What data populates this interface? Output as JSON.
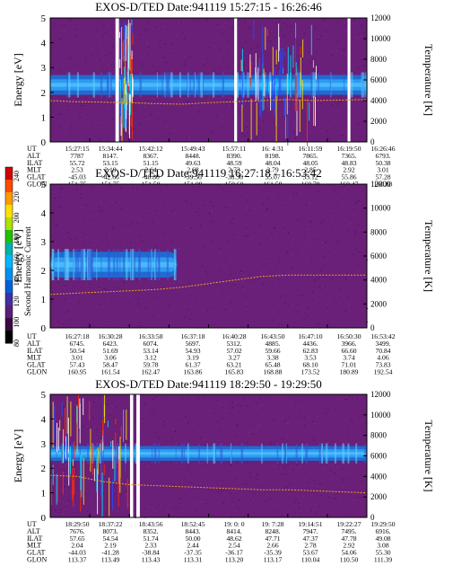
{
  "colors": {
    "background": "#6a1f78",
    "band": "#1e6fd6",
    "band_core": "#4ab8ff",
    "band_edge": "#2e9bf0",
    "temperature_trace": "#f0a020",
    "gap": "#ffffff"
  },
  "colorbar": {
    "label": "Second Harmonic Current",
    "ticks": [
      "240",
      "220",
      "200",
      "180",
      "160",
      "140",
      "120",
      "100",
      "80"
    ],
    "colors": [
      "#d10000",
      "#ff4a00",
      "#ff9a00",
      "#ffe000",
      "#b0e000",
      "#20c000",
      "#00b0b0",
      "#00b6ff",
      "#0090f0",
      "#0060d8",
      "#4030a0",
      "#5a1f7a",
      "#3a0a40",
      "#000000"
    ]
  },
  "chart_data": [
    {
      "type": "heatmap",
      "title": "EXOS-D/TED   Date:941119   15:27:15 - 16:26:46",
      "ylabel": "Energy [eV]",
      "y2label": "Temperature [K]",
      "ylim": [
        0,
        5
      ],
      "y2lim": [
        0,
        12000
      ],
      "yticks": [
        "0",
        "1",
        "2",
        "3",
        "4",
        "5"
      ],
      "y2ticks": [
        "0",
        "2000",
        "4000",
        "6000",
        "8000",
        "10000",
        "12000"
      ],
      "band": {
        "center_eV": 2.3,
        "width_eV": 0.8
      },
      "temperature_K": [
        4000,
        3900,
        3850,
        3800,
        3700,
        3650,
        3800,
        3900,
        4000,
        4100,
        4000,
        4050,
        4100
      ],
      "gaps": [
        [
          0.206,
          0.217
        ],
        [
          0.581,
          0.59
        ],
        [
          0.939,
          0.948
        ]
      ],
      "noise_segments": [
        [
          0.217,
          0.26
        ],
        [
          0.6,
          0.84
        ]
      ],
      "ephemeris": {
        "rows": [
          "UT",
          "ALT",
          "ILAT",
          "MLT",
          "GLAT",
          "GLON"
        ],
        "columns": [
          [
            "15:27:15",
            "7787",
            "55.72",
            "2.53",
            "-45.03",
            "151.75"
          ],
          [
            "15:34:44",
            "8147.",
            "53.15",
            "2.19",
            "-42.66",
            "151.75"
          ],
          [
            "15:42:12",
            "8367.",
            "51.15",
            "2.64",
            "-40.80",
            "151.50"
          ],
          [
            "15:49:43",
            "8448.",
            "49.63",
            "2.68",
            "-39.36",
            "151.09"
          ],
          [
            "15:57:11",
            "8390.",
            "48.59",
            "2.73",
            "-38.36",
            "150.60"
          ],
          [
            "16: 4:31",
            "8198.",
            "48.04",
            "2.79",
            "55.07",
            "161.58"
          ],
          [
            "16:11:59",
            "7865.",
            "48.05",
            "2.85",
            "55.12",
            "160.78"
          ],
          [
            "16:19:50",
            "7365.",
            "48.83",
            "2.92",
            "55.86",
            "160.47"
          ],
          [
            "16:26:46",
            "6793.",
            "50.38",
            "3.01",
            "57.28",
            "160.88"
          ]
        ]
      }
    },
    {
      "type": "heatmap",
      "title": "EXOS-D/TED   Date:941119   16:27:18 - 16:53:42",
      "ylabel": "Energy [eV]",
      "y2label": "Temperature [K]",
      "ylim": [
        0,
        5
      ],
      "y2lim": [
        0,
        12000
      ],
      "yticks": [
        "0",
        "1",
        "2",
        "3",
        "4",
        "5"
      ],
      "y2ticks": [
        "0",
        "2000",
        "4000",
        "6000",
        "8000",
        "10000",
        "12000"
      ],
      "band": {
        "center_eV": 2.2,
        "width_eV": 0.9
      },
      "temperature_K": [
        2800,
        2900,
        3000,
        3100,
        3200,
        3400,
        3700,
        4000,
        4300,
        4400,
        4400,
        4400,
        4400
      ],
      "band_end_fraction": 0.4,
      "gaps": [],
      "ephemeris": {
        "rows": [
          "UT",
          "ALT",
          "ILAT",
          "MLT",
          "GLAT",
          "GLON"
        ],
        "columns": [
          [
            "16:27:18",
            "6745.",
            "50.54",
            "3.01",
            "57.43",
            "160.95"
          ],
          [
            "16:30:28",
            "6423.",
            "51.69",
            "3.06",
            "58.47",
            "161.54"
          ],
          [
            "16:33:58",
            "6074.",
            "53.14",
            "3.12",
            "59.78",
            "162.47"
          ],
          [
            "16:37:18",
            "5697.",
            "54.93",
            "3.19",
            "61.37",
            "163.86"
          ],
          [
            "16:40:28",
            "5312.",
            "57.02",
            "3.27",
            "63.21",
            "165.83"
          ],
          [
            "16:43:50",
            "4885.",
            "59.66",
            "3.38",
            "65.48",
            "168.88"
          ],
          [
            "16:47:10",
            "4436.",
            "62.83",
            "3.53",
            "68.10",
            "173.52"
          ],
          [
            "16:50:30",
            "3966.",
            "66.60",
            "3.74",
            "71.01",
            "180.89"
          ],
          [
            "16:53:42",
            "3499.",
            "70.84",
            "4.06",
            "73.83",
            "192.54"
          ]
        ]
      }
    },
    {
      "type": "heatmap",
      "title": "EXOS-D/TED   Date:941119   18:29:50 - 19:29:50",
      "ylabel": "Energy [eV]",
      "y2label": "Temperature [K]",
      "ylim": [
        0,
        5
      ],
      "y2lim": [
        0,
        12000
      ],
      "yticks": [
        "0",
        "1",
        "2",
        "3",
        "4",
        "5"
      ],
      "y2ticks": [
        "0",
        "2000",
        "4000",
        "6000",
        "8000",
        "10000",
        "12000"
      ],
      "band": {
        "center_eV": 2.6,
        "width_eV": 0.6
      },
      "temperature_K": [
        4100,
        4000,
        3500,
        3200,
        3100,
        3000,
        2900,
        2800,
        2700,
        2700,
        2600,
        2500,
        2400
      ],
      "gaps": [
        [
          0.252,
          0.262
        ],
        [
          0.272,
          0.283
        ]
      ],
      "noise_segments": [
        [
          0.0,
          0.26
        ]
      ],
      "ephemeris": {
        "rows": [
          "UT",
          "ALT",
          "ILAT",
          "MLT",
          "GLAT",
          "GLON"
        ],
        "columns": [
          [
            "18:29:50",
            "7676.",
            "57.65",
            "2.04",
            "-44.03",
            "113.37"
          ],
          [
            "18:37:22",
            "8073.",
            "54.54",
            "2.19",
            "-41.28",
            "113.49"
          ],
          [
            "18:43:56",
            "8352.",
            "51.74",
            "2.33",
            "-38.84",
            "113.43"
          ],
          [
            "18:52:45",
            "8443.",
            "50.00",
            "2.44",
            "-37.35",
            "113.31"
          ],
          [
            "19: 0: 0",
            "8414.",
            "48.62",
            "2.54",
            "-36.17",
            "113.20"
          ],
          [
            "19: 7:28",
            "8248.",
            "47.71",
            "2.66",
            "-35.39",
            "113.17"
          ],
          [
            "19:14:51",
            "7947.",
            "47.37",
            "2.78",
            "53.67",
            "110.04"
          ],
          [
            "19:22:27",
            "7495.",
            "47.78",
            "2.92",
            "54.06",
            "110.50"
          ],
          [
            "19:29:50",
            "6916.",
            "49.08",
            "3.08",
            "55.30",
            "111.39"
          ]
        ]
      }
    }
  ]
}
